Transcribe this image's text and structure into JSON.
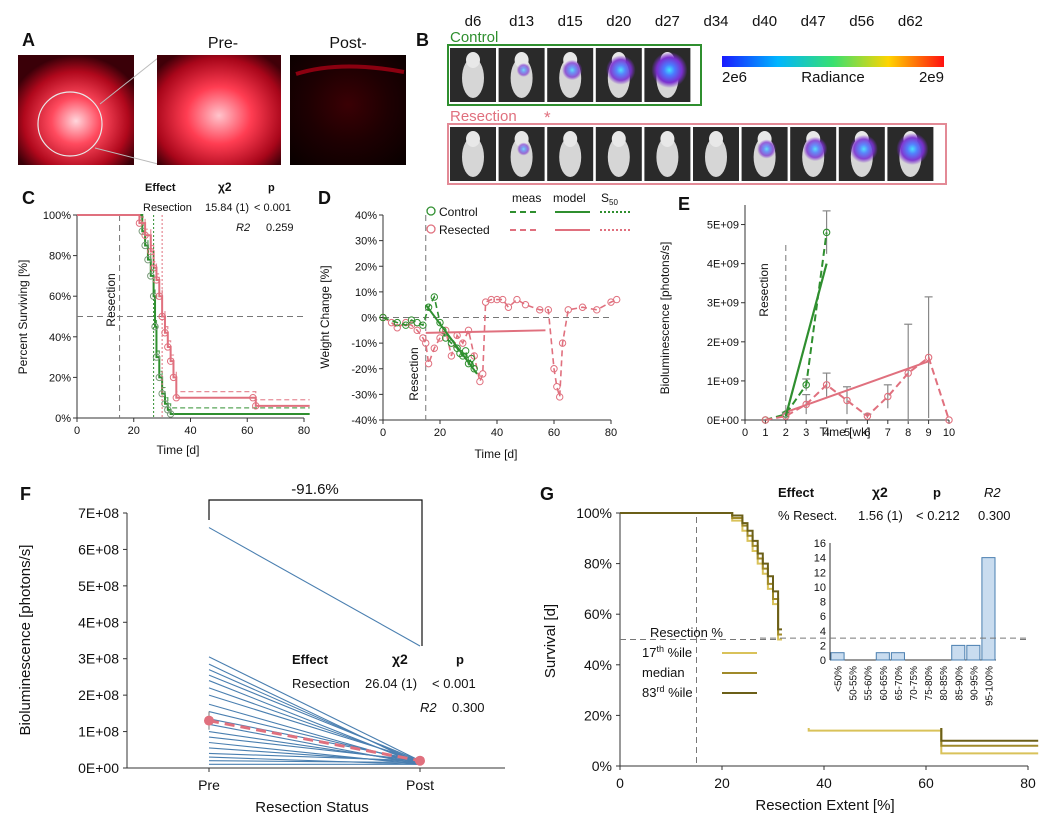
{
  "panels": {
    "A": {
      "letter": "A",
      "pre_label": "Pre-",
      "post_label": "Post-"
    },
    "B": {
      "letter": "B",
      "days": [
        "d6",
        "d13",
        "d15",
        "d20",
        "d27",
        "d34",
        "d40",
        "d47",
        "d56",
        "d62"
      ],
      "control_label": "Control",
      "resection_label": "Resection",
      "star": "*",
      "colorbar": {
        "min": "2e6",
        "label": "Radiance",
        "max": "2e9"
      },
      "control_signal": [
        0.0,
        0.15,
        0.4,
        0.75,
        1.0
      ],
      "resection_signal": [
        0.0,
        0.12,
        0.0,
        0.0,
        0.0,
        0.0,
        0.35,
        0.55,
        0.7,
        0.85
      ],
      "colors": {
        "control": "#2f8f2f",
        "resection": "#e38a96"
      }
    }
  },
  "chart_data": [
    {
      "id": "C",
      "letter": "C",
      "type": "line",
      "xlabel": "Time [d]",
      "ylabel": "Percent Surviving [%]",
      "xlim": [
        0,
        80
      ],
      "ylim": [
        0,
        100
      ],
      "xticks": [
        "0",
        "20",
        "40",
        "60",
        "80"
      ],
      "yticks": [
        "0%",
        "20%",
        "40%",
        "60%",
        "80%",
        "100%"
      ],
      "vline_label": "Resection",
      "vline_x": 15,
      "hline_y": 50,
      "table": {
        "headers": [
          "Effect",
          "χ2",
          "p"
        ],
        "rows": [
          [
            "Resection",
            "15.84 (1)",
            "< 0.001"
          ]
        ],
        "r2_label": "R2",
        "r2_value": "0.259"
      },
      "series": [
        {
          "name": "Control",
          "color": "#2f8f2f",
          "x": [
            0,
            21,
            23,
            24,
            25,
            26,
            27,
            27.5,
            28,
            29,
            30,
            31,
            32,
            33,
            82
          ],
          "y": [
            100,
            100,
            92,
            85,
            78,
            70,
            60,
            45,
            30,
            20,
            12,
            7,
            4,
            2,
            2
          ]
        },
        {
          "name": "Resected",
          "color": "#e0707e",
          "x": [
            0,
            22,
            24,
            26,
            27,
            28,
            29,
            30,
            31,
            32,
            33,
            34,
            35,
            62,
            63,
            82
          ],
          "y": [
            100,
            96,
            90,
            82,
            74,
            68,
            60,
            50,
            42,
            35,
            28,
            20,
            10,
            10,
            6,
            6
          ]
        }
      ]
    },
    {
      "id": "D",
      "letter": "D",
      "type": "line",
      "xlabel": "Time [d]",
      "ylabel": "Weight Change [%]",
      "xlim": [
        0,
        80
      ],
      "ylim": [
        -40,
        40
      ],
      "xticks": [
        "0",
        "20",
        "40",
        "60",
        "80"
      ],
      "yticks": [
        "-40%",
        "-30%",
        "-20%",
        "-10%",
        "0%",
        "10%",
        "20%",
        "30%",
        "40%"
      ],
      "vline_label": "Resection",
      "vline_x": 15,
      "legend_headers": {
        "meas": "meas",
        "model": "model",
        "s": "S",
        "sub": "50"
      },
      "series": [
        {
          "name": "Control",
          "color": "#2f8f2f",
          "x": [
            0,
            5,
            8,
            10,
            12,
            14,
            16,
            18,
            20,
            21,
            22,
            24,
            26,
            27,
            28,
            29,
            30,
            31,
            32
          ],
          "y": [
            0,
            -2,
            -3,
            -1,
            -2,
            -3,
            4,
            8,
            -2,
            -5,
            -8,
            -10,
            -12,
            -14,
            -15,
            -13,
            -18,
            -16,
            -20
          ]
        },
        {
          "name": "Resected",
          "color": "#e0707e",
          "x": [
            0,
            3,
            5,
            8,
            10,
            12,
            14,
            15,
            16,
            18,
            20,
            22,
            24,
            26,
            28,
            30,
            32,
            34,
            35,
            36,
            38,
            40,
            42,
            44,
            47,
            50,
            55,
            58,
            60,
            61,
            62,
            63,
            65,
            70,
            75,
            80,
            82
          ],
          "y": [
            0,
            -2,
            -4,
            -2,
            -3,
            -5,
            -8,
            -10,
            -18,
            -12,
            -8,
            -5,
            -15,
            -7,
            -10,
            -5,
            -15,
            -25,
            -22,
            6,
            7,
            7,
            7,
            4,
            7,
            5,
            3,
            3,
            -20,
            -27,
            -31,
            -10,
            3,
            4,
            3,
            6,
            7
          ]
        }
      ],
      "control_model": {
        "x": [
          15,
          33
        ],
        "y": [
          5,
          -22
        ]
      },
      "resected_model": {
        "x": [
          15,
          57
        ],
        "y": [
          -6,
          -5
        ]
      }
    },
    {
      "id": "E",
      "letter": "E",
      "type": "line",
      "xlabel": "Time [wk]",
      "ylabel": "Bioluminescence [photons/s]",
      "xlim": [
        0,
        10
      ],
      "ylim": [
        0,
        5.5
      ],
      "xticks": [
        "0",
        "1",
        "2",
        "3",
        "4",
        "5",
        "6",
        "7",
        "8",
        "9",
        "10"
      ],
      "yticks": [
        "0E+00",
        "1E+09",
        "2E+09",
        "3E+09",
        "4E+09",
        "5E+09"
      ],
      "vline_label": "Resection",
      "vline_x": 2,
      "series": [
        {
          "name": "Control",
          "color": "#2f8f2f",
          "x": [
            1,
            2,
            3,
            4
          ],
          "y": [
            0.0,
            0.15,
            0.9,
            4.8
          ],
          "err": [
            0,
            0.05,
            0.15,
            0.55
          ]
        },
        {
          "name": "Resected",
          "color": "#e0707e",
          "x": [
            1,
            2,
            3,
            4,
            5,
            6,
            7,
            8,
            9,
            10
          ],
          "y": [
            0.0,
            0.1,
            0.4,
            0.9,
            0.5,
            0.1,
            0.6,
            1.2,
            1.6,
            0.0
          ],
          "err": [
            0,
            0.05,
            0.25,
            0.3,
            0.35,
            0.05,
            0.3,
            1.25,
            1.55,
            0
          ]
        }
      ],
      "control_model": {
        "x": [
          2,
          4
        ],
        "y": [
          0.1,
          4.0
        ]
      },
      "resected_model": {
        "x": [
          2,
          9
        ],
        "y": [
          0.2,
          1.5
        ]
      }
    },
    {
      "id": "F",
      "letter": "F",
      "type": "line",
      "xlabel": "Resection Status",
      "ylabel": "Bioluminescence [photons/s]",
      "categories": [
        "Pre",
        "Post"
      ],
      "ylim": [
        0,
        7
      ],
      "yticks": [
        "0E+00",
        "1E+08",
        "2E+08",
        "3E+08",
        "4E+08",
        "5E+08",
        "6E+08",
        "7E+08"
      ],
      "bracket_label": "-91.6%",
      "table": {
        "headers": [
          "Effect",
          "χ2",
          "p"
        ],
        "rows": [
          [
            "Resection",
            "26.04 (1)",
            "< 0.001"
          ]
        ],
        "r2_label": "R2",
        "r2_value": "0.300"
      },
      "pre_values": [
        6.6,
        3.05,
        2.85,
        2.7,
        2.55,
        2.4,
        2.2,
        2.0,
        1.75,
        1.55,
        1.35,
        1.2,
        1.0,
        0.85,
        0.7,
        0.55,
        0.4,
        0.3,
        0.2,
        0.1
      ],
      "post_values": [
        3.35,
        0.2,
        0.1,
        0.15,
        0.2,
        0.1,
        0.15,
        0.2,
        0.1,
        0.15,
        0.2,
        0.1,
        0.15,
        0.2,
        0.1,
        0.15,
        0.2,
        0.1,
        0.15,
        0.1
      ],
      "mean": {
        "pre": 1.3,
        "post": 0.2,
        "pre_err": 0.25,
        "post_err": 0.08
      },
      "colors": {
        "lines": "#4a7fb0",
        "mean": "#e0707e"
      }
    },
    {
      "id": "G",
      "letter": "G",
      "type": "line",
      "xlabel": "Resection Extent [%]",
      "ylabel": "Survival [d]",
      "xlim": [
        0,
        80
      ],
      "ylim": [
        0,
        100
      ],
      "xticks": [
        "0",
        "20",
        "40",
        "60",
        "80"
      ],
      "yticks": [
        "0%",
        "20%",
        "40%",
        "60%",
        "80%",
        "100%"
      ],
      "table": {
        "headers": [
          "Effect",
          "χ2",
          "p",
          "R2"
        ],
        "rows": [
          [
            "% Resect.",
            "1.56 (1)",
            "< 0.212",
            "0.300"
          ]
        ]
      },
      "legend": {
        "title": "Resection %",
        "items": [
          {
            "pre": "17",
            "sup": "th",
            "post": " %ile",
            "color": "#d9c25a"
          },
          {
            "pre": "median",
            "sup": "",
            "post": "",
            "color": "#a08a2a"
          },
          {
            "pre": "83",
            "sup": "rd",
            "post": " %ile",
            "color": "#6b5f18"
          }
        ]
      },
      "vline_x": 15,
      "hline_y": 50,
      "series": [
        {
          "name": "17th %ile",
          "color": "#d9c25a",
          "x": [
            0,
            20,
            22,
            24,
            25,
            26,
            27,
            28,
            29,
            30,
            31,
            32,
            33,
            34,
            35,
            36,
            37,
            62,
            63,
            82
          ],
          "y": [
            100,
            100,
            97,
            93,
            89,
            85,
            80,
            76,
            70,
            64,
            50,
            48,
            40,
            30,
            22,
            18,
            14,
            14,
            5,
            5
          ]
        },
        {
          "name": "median",
          "color": "#a08a2a",
          "x": [
            0,
            20,
            22,
            24,
            25,
            26,
            27,
            28,
            29,
            30,
            31,
            32,
            33,
            34,
            35,
            36,
            37,
            62,
            63,
            82
          ],
          "y": [
            100,
            100,
            98,
            95,
            91,
            87,
            82,
            78,
            72,
            66,
            52,
            50,
            42,
            32,
            24,
            20,
            16,
            16,
            8,
            8
          ]
        },
        {
          "name": "83rd %ile",
          "color": "#6b5f18",
          "x": [
            0,
            20,
            22,
            24,
            25,
            26,
            27,
            28,
            29,
            30,
            31,
            32,
            33,
            34,
            35,
            36,
            37,
            62,
            63,
            82
          ],
          "y": [
            100,
            100,
            99,
            96,
            93,
            89,
            84,
            80,
            75,
            69,
            54,
            53,
            45,
            35,
            27,
            22,
            17,
            17,
            10,
            10
          ]
        }
      ],
      "inset": {
        "type": "bar",
        "categories": [
          "<50%",
          "50-55%",
          "55-60%",
          "60-65%",
          "65-70%",
          "70-75%",
          "75-80%",
          "80-85%",
          "85-90%",
          "90-95%",
          "95-100%"
        ],
        "values": [
          1,
          0,
          0,
          1,
          1,
          0,
          0,
          0,
          2,
          2,
          14
        ],
        "ylim": [
          0,
          16
        ],
        "yticks": [
          "0",
          "2",
          "4",
          "6",
          "8",
          "10",
          "12",
          "14",
          "16"
        ],
        "hline_y": 3,
        "color": "#c9dcef"
      }
    }
  ]
}
